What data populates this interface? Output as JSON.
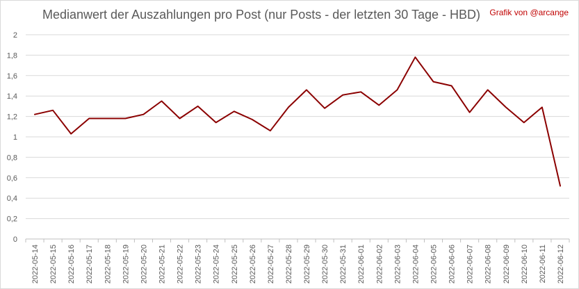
{
  "chart_data": {
    "type": "line",
    "title": "Medianwert der Auszahlungen pro Post (nur Posts - der letzten 30 Tage - HBD)",
    "credit": "Grafik von @arcange",
    "xlabel": "",
    "ylabel": "",
    "ylim": [
      0,
      2
    ],
    "yticks": [
      "0",
      "0,2",
      "0,4",
      "0,6",
      "0,8",
      "1",
      "1,2",
      "1,4",
      "1,6",
      "1,8",
      "2"
    ],
    "grid": true,
    "legend": "none",
    "categories": [
      "2022-05-14",
      "2022-05-15",
      "2022-05-16",
      "2022-05-17",
      "2022-05-18",
      "2022-05-19",
      "2022-05-20",
      "2022-05-21",
      "2022-05-22",
      "2022-05-23",
      "2022-05-24",
      "2022-05-25",
      "2022-05-26",
      "2022-05-27",
      "2022-05-28",
      "2022-05-29",
      "2022-05-30",
      "2022-05-31",
      "2022-06-01",
      "2022-06-02",
      "2022-06-03",
      "2022-06-04",
      "2022-06-05",
      "2022-06-06",
      "2022-06-07",
      "2022-06-08",
      "2022-06-09",
      "2022-06-10",
      "2022-06-11",
      "2022-06-12"
    ],
    "series": [
      {
        "values": [
          1.22,
          1.26,
          1.03,
          1.18,
          1.18,
          1.18,
          1.22,
          1.35,
          1.18,
          1.3,
          1.14,
          1.25,
          1.17,
          1.06,
          1.29,
          1.46,
          1.28,
          1.41,
          1.44,
          1.31,
          1.46,
          1.78,
          1.54,
          1.5,
          1.24,
          1.46,
          1.29,
          1.14,
          1.29,
          0.52
        ],
        "color": "#8b0000"
      }
    ]
  }
}
